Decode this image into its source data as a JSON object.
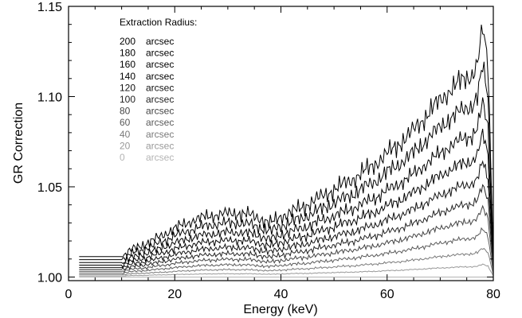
{
  "chart_data": {
    "type": "line",
    "title": "",
    "xlabel": "Energy (keV)",
    "ylabel": "GR Correction",
    "xlim": [
      0,
      80
    ],
    "ylim": [
      0.998,
      1.15
    ],
    "x_ticks": [
      0,
      20,
      40,
      60,
      80
    ],
    "x_tick_labels": [
      "0",
      "20",
      "40",
      "60",
      "80"
    ],
    "y_ticks": [
      1.0,
      1.05,
      1.1,
      1.15
    ],
    "y_tick_labels": [
      "1.00",
      "1.05",
      "1.10",
      "1.15"
    ],
    "grid": false,
    "legend_title": "Extraction Radius:",
    "legend_placement": "top-left",
    "x": [
      2,
      4,
      6,
      8,
      10,
      12,
      14,
      16,
      18,
      20,
      22,
      24,
      26,
      28,
      30,
      32,
      34,
      36,
      38,
      40,
      42,
      44,
      46,
      48,
      50,
      52,
      54,
      56,
      58,
      60,
      62,
      64,
      66,
      68,
      70,
      72,
      74,
      76,
      77,
      78,
      79,
      80
    ],
    "series": [
      {
        "name": "200",
        "unit": "arcsec",
        "color": "#000000",
        "values": [
          1.0113,
          1.0113,
          1.0113,
          1.0113,
          1.0113,
          1.0154,
          1.0179,
          1.0204,
          1.0237,
          1.027,
          1.0295,
          1.032,
          1.0336,
          1.0345,
          1.0353,
          1.0353,
          1.0345,
          1.0328,
          1.0295,
          1.0336,
          1.0361,
          1.0386,
          1.0419,
          1.0452,
          1.0485,
          1.0518,
          1.0551,
          1.0592,
          1.0634,
          1.0683,
          1.0733,
          1.0783,
          1.0849,
          1.0915,
          1.0981,
          1.1039,
          1.1089,
          1.1122,
          1.118,
          1.1375,
          1.118,
          1.0113
        ]
      },
      {
        "name": "180",
        "unit": "arcsec",
        "color": "#000000",
        "values": [
          1.0096,
          1.0096,
          1.0096,
          1.0096,
          1.0096,
          1.0131,
          1.0152,
          1.0173,
          1.0201,
          1.0229,
          1.025,
          1.0271,
          1.0285,
          1.0292,
          1.03,
          1.03,
          1.0292,
          1.0278,
          1.025,
          1.0285,
          1.0306,
          1.0327,
          1.0355,
          1.0383,
          1.0411,
          1.0439,
          1.0467,
          1.0502,
          1.0537,
          1.058,
          1.0622,
          1.0664,
          1.072,
          1.0776,
          1.0832,
          1.0881,
          1.0923,
          1.0951,
          1.1,
          1.1166,
          1.1,
          1.0096
        ]
      },
      {
        "name": "160",
        "unit": "arcsec",
        "color": "#000000",
        "values": [
          1.008,
          1.008,
          1.008,
          1.008,
          1.008,
          1.0109,
          1.0126,
          1.0144,
          1.0167,
          1.019,
          1.0207,
          1.0225,
          1.0236,
          1.0242,
          1.0248,
          1.0248,
          1.0242,
          1.023,
          1.0207,
          1.0236,
          1.0254,
          1.0271,
          1.0294,
          1.0317,
          1.034,
          1.0363,
          1.0387,
          1.0415,
          1.0444,
          1.0479,
          1.0514,
          1.0549,
          1.0595,
          1.0641,
          1.0687,
          1.0728,
          1.0762,
          1.0785,
          1.0826,
          1.0964,
          1.0826,
          1.008
        ]
      },
      {
        "name": "140",
        "unit": "arcsec",
        "color": "#000000",
        "values": [
          1.0066,
          1.0066,
          1.0066,
          1.0066,
          1.0066,
          1.0089,
          1.0103,
          1.0118,
          1.0137,
          1.0156,
          1.017,
          1.0185,
          1.0194,
          1.0199,
          1.0203,
          1.0203,
          1.0199,
          1.0189,
          1.017,
          1.0194,
          1.0208,
          1.0222,
          1.0241,
          1.026,
          1.0279,
          1.0298,
          1.0317,
          1.0341,
          1.0364,
          1.0393,
          1.0421,
          1.045,
          1.0488,
          1.0525,
          1.0563,
          1.0597,
          1.0625,
          1.0644,
          1.0678,
          1.0791,
          1.0678,
          1.0066
        ]
      },
      {
        "name": "120",
        "unit": "arcsec",
        "color": "#111111",
        "values": [
          1.0053,
          1.0053,
          1.0053,
          1.0053,
          1.0053,
          1.0072,
          1.0083,
          1.0095,
          1.011,
          1.0125,
          1.0137,
          1.0149,
          1.0156,
          1.016,
          1.0164,
          1.0164,
          1.016,
          1.0152,
          1.0137,
          1.0156,
          1.0168,
          1.0179,
          1.0194,
          1.021,
          1.0225,
          1.024,
          1.0255,
          1.0274,
          1.0293,
          1.0316,
          1.0339,
          1.0362,
          1.0392,
          1.0423,
          1.0453,
          1.048,
          1.0503,
          1.0518,
          1.0545,
          1.0636,
          1.0545,
          1.0053
        ]
      },
      {
        "name": "100",
        "unit": "arcsec",
        "color": "#222222",
        "values": [
          1.0042,
          1.0042,
          1.0042,
          1.0042,
          1.0042,
          1.0057,
          1.0066,
          1.0075,
          1.0087,
          1.0099,
          1.0108,
          1.0117,
          1.0123,
          1.0126,
          1.0129,
          1.0129,
          1.0126,
          1.012,
          1.0108,
          1.0123,
          1.0132,
          1.0141,
          1.0153,
          1.0165,
          1.0177,
          1.0189,
          1.0201,
          1.0216,
          1.0231,
          1.0249,
          1.0267,
          1.0285,
          1.0309,
          1.0333,
          1.0357,
          1.0378,
          1.0396,
          1.0408,
          1.0429,
          1.0501,
          1.0429,
          1.0042
        ]
      },
      {
        "name": "80",
        "unit": "arcsec",
        "color": "#444444",
        "values": [
          1.0032,
          1.0032,
          1.0032,
          1.0032,
          1.0032,
          1.0043,
          1.005,
          1.0057,
          1.0066,
          1.0075,
          1.0082,
          1.0089,
          1.0093,
          1.0096,
          1.0098,
          1.0098,
          1.0096,
          1.0091,
          1.0082,
          1.0093,
          1.01,
          1.0107,
          1.0116,
          1.0125,
          1.0134,
          1.0143,
          1.0153,
          1.0164,
          1.0175,
          1.0189,
          1.0203,
          1.0216,
          1.0235,
          1.0253,
          1.0271,
          1.0287,
          1.0301,
          1.031,
          1.0326,
          1.0381,
          1.0326,
          1.0032
        ]
      },
      {
        "name": "60",
        "unit": "arcsec",
        "color": "#5a5a5a",
        "values": [
          1.0022,
          1.0022,
          1.0022,
          1.0022,
          1.0022,
          1.003,
          1.0035,
          1.004,
          1.0046,
          1.0052,
          1.0057,
          1.0062,
          1.0065,
          1.0066,
          1.0068,
          1.0068,
          1.0066,
          1.0063,
          1.0057,
          1.0065,
          1.007,
          1.0074,
          1.0081,
          1.0087,
          1.0093,
          1.01,
          1.0106,
          1.0114,
          1.0122,
          1.0131,
          1.0141,
          1.015,
          1.0163,
          1.0175,
          1.0188,
          1.0199,
          1.0209,
          1.0215,
          1.0226,
          1.0264,
          1.0226,
          1.0022
        ]
      },
      {
        "name": "40",
        "unit": "arcsec",
        "color": "#7a7a7a",
        "values": [
          1.0013,
          1.0013,
          1.0013,
          1.0013,
          1.0013,
          1.0018,
          1.0021,
          1.0024,
          1.0027,
          1.0031,
          1.0034,
          1.0037,
          1.0039,
          1.004,
          1.0041,
          1.0041,
          1.004,
          1.0038,
          1.0034,
          1.0039,
          1.0042,
          1.0045,
          1.0048,
          1.0052,
          1.0056,
          1.006,
          1.0063,
          1.0068,
          1.0073,
          1.0079,
          1.0084,
          1.009,
          1.0098,
          1.0105,
          1.0113,
          1.012,
          1.0125,
          1.0129,
          1.0136,
          1.0158,
          1.0136,
          1.0013
        ]
      },
      {
        "name": "20",
        "unit": "arcsec",
        "color": "#999999",
        "values": [
          1.0006,
          1.0006,
          1.0006,
          1.0006,
          1.0006,
          1.0008,
          1.0009,
          1.0011,
          1.0012,
          1.0014,
          1.0015,
          1.0016,
          1.0017,
          1.0018,
          1.0018,
          1.0018,
          1.0018,
          1.0017,
          1.0015,
          1.0017,
          1.0019,
          1.002,
          1.0021,
          1.0023,
          1.0025,
          1.0026,
          1.0028,
          1.003,
          1.0032,
          1.0035,
          1.0037,
          1.004,
          1.0043,
          1.0047,
          1.005,
          1.0053,
          1.0056,
          1.0057,
          1.006,
          1.007,
          1.006,
          1.0006
        ]
      },
      {
        "name": "0",
        "unit": "arcsec",
        "color": "#b4b4b4",
        "values": [
          1.0,
          1.0,
          1.0,
          1.0,
          1.0,
          1.0,
          1.0,
          1.0,
          1.0,
          1.0,
          1.0,
          1.0,
          1.0,
          1.0,
          1.0,
          1.0,
          1.0,
          1.0,
          1.0,
          1.0,
          1.0,
          1.0,
          1.0,
          1.0,
          1.0,
          1.0,
          1.0,
          1.0,
          1.0,
          1.0,
          1.0,
          1.0,
          1.0,
          1.0,
          1.0,
          1.0,
          1.0,
          1.0,
          1.0,
          1.0,
          1.0,
          1.0
        ]
      }
    ]
  }
}
